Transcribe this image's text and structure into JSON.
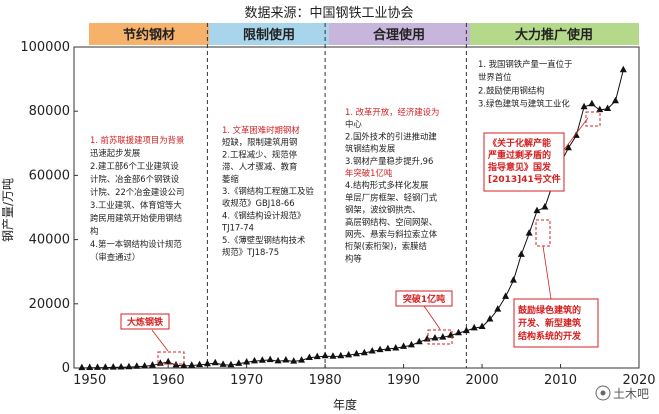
{
  "source_title": "数据来源：中国钢铁工业协会",
  "watermark": "土木吧",
  "colors": {
    "band_1": "#f6b26b",
    "band_2": "#a9d5ec",
    "band_3": "#c8b5db",
    "band_4": "#b4d98b",
    "accent_red": "#d42020",
    "marker": "#111111"
  },
  "periods": [
    {
      "label": "节约钢材",
      "notes": [
        {
          "text": "1. 前苏联援建项目为背景",
          "red": true
        },
        {
          "text": "迅速起步发展",
          "red": false
        },
        {
          "text": "2.建工部6个工业建筑设",
          "red": false
        },
        {
          "text": "计院、冶金部6个钢铁设",
          "red": false
        },
        {
          "text": "计院、22个冶金建设公司",
          "red": false
        },
        {
          "text": "3.工业建筑、体育馆等大",
          "red": false
        },
        {
          "text": "跨民用建筑开始使用钢结",
          "red": false
        },
        {
          "text": "构",
          "red": false
        },
        {
          "text": "4.第一本钢结构设计规范",
          "red": false
        },
        {
          "text": "（审查通过）",
          "red": false
        }
      ]
    },
    {
      "label": "限制使用",
      "notes": [
        {
          "text": "1. 文革困难时期钢材",
          "red": true
        },
        {
          "text": "短缺，限制建筑用钢",
          "red": false
        },
        {
          "text": "2.工程减少、规范停",
          "red": false
        },
        {
          "text": "滞、人才骤减、教育",
          "red": false
        },
        {
          "text": "萎缩",
          "red": false
        },
        {
          "text": "3.《钢结构工程施工及验",
          "red": false
        },
        {
          "text": "收规范》GBJ18-66",
          "red": false
        },
        {
          "text": "4.《钢结构设计规范》",
          "red": false
        },
        {
          "text": "TJ17-74",
          "red": false
        },
        {
          "text": "5.《薄壁型钢结构技术",
          "red": false
        },
        {
          "text": "规范》TJ18-75",
          "red": false
        }
      ]
    },
    {
      "label": "合理使用",
      "notes": [
        {
          "text": "1. 改革开放，经济建设为",
          "red": true
        },
        {
          "text": "中心",
          "red": false
        },
        {
          "text": "2.国外技术的引进推动建",
          "red": false
        },
        {
          "text": "筑钢结构发展",
          "red": false
        },
        {
          "text": "3.钢材产量稳步提升,96",
          "red": false
        },
        {
          "text": "年突破1亿吨",
          "red": true
        },
        {
          "text": "4.结构形式多样化发展",
          "red": false
        },
        {
          "text": "单层厂房框架、轻钢门式",
          "red": false
        },
        {
          "text": "钢架，波纹钢拱壳、",
          "red": false
        },
        {
          "text": "高层钢结构、空间网架、",
          "red": false
        },
        {
          "text": "网壳、悬索与斜拉索立体",
          "red": false
        },
        {
          "text": "桁架(索桁架)，索膜结",
          "red": false
        },
        {
          "text": "构等",
          "red": false
        }
      ]
    },
    {
      "label": "大力推广使用",
      "notes": [
        {
          "text": "1. 我国钢铁产量一直位于",
          "red": false
        },
        {
          "text": "世界首位",
          "red": false
        },
        {
          "text": "2.鼓励使用钢结构",
          "red": false
        },
        {
          "text": "3.绿色建筑与建筑工业化",
          "red": false
        }
      ]
    }
  ],
  "callouts": {
    "dalian_gang": "大炼钢铁",
    "tupo_yiyi": "突破1亿吨",
    "policy": [
      "《关于化解产能",
      "严重过剩矛盾的",
      "指导意见》国发",
      "[2013]41号文件"
    ],
    "green": [
      "鼓励绿色建筑的",
      "开发、新型建筑",
      "结构系统的开发"
    ]
  },
  "chart_data": {
    "type": "line",
    "title": "数据来源：中国钢铁工业协会",
    "xlabel": "年度",
    "ylabel": "钢产量/万吨",
    "xlim": [
      1948,
      2020
    ],
    "ylim": [
      0,
      100000
    ],
    "x_ticks": [
      1950,
      1960,
      1970,
      1980,
      1990,
      2000,
      2010,
      2020
    ],
    "y_ticks": [
      0,
      20000,
      40000,
      60000,
      80000,
      100000
    ],
    "y_tick_labels": [
      "0",
      "20000",
      "40000",
      "60000",
      "80000",
      "100000"
    ],
    "grid": false,
    "marker": "triangle",
    "series": [
      {
        "x": [
          1949,
          1950,
          1951,
          1952,
          1953,
          1954,
          1955,
          1956,
          1957,
          1958,
          1959,
          1960,
          1961,
          1962,
          1963,
          1964,
          1965,
          1966,
          1967,
          1968,
          1969,
          1970,
          1971,
          1972,
          1973,
          1974,
          1975,
          1976,
          1977,
          1978,
          1979,
          1980,
          1981,
          1982,
          1983,
          1984,
          1985,
          1986,
          1987,
          1988,
          1989,
          1990,
          1991,
          1992,
          1993,
          1994,
          1995,
          1996,
          1997,
          1998,
          1999,
          2000,
          2001,
          2002,
          2003,
          2004,
          2005,
          2006,
          2007,
          2008,
          2009,
          2010,
          2011,
          2012,
          2013,
          2014,
          2015,
          2016,
          2017,
          2018
        ],
        "values": [
          16,
          61,
          90,
          135,
          177,
          223,
          285,
          447,
          535,
          800,
          1387,
          1866,
          870,
          667,
          762,
          964,
          1223,
          1532,
          1029,
          904,
          1333,
          1779,
          2132,
          2338,
          2522,
          2112,
          2390,
          2046,
          2374,
          3178,
          3448,
          3712,
          3560,
          3716,
          4002,
          4347,
          4679,
          5221,
          5628,
          5943,
          6159,
          6635,
          7100,
          8094,
          8956,
          9261,
          9536,
          10124,
          10894,
          11559,
          12426,
          12850,
          15163,
          18237,
          22234,
          27280,
          35324,
          41915,
          48929,
          50049,
          57218,
          63723,
          68528,
          72388,
          81314,
          82231,
          80383,
          80761,
          83173,
          92826
        ]
      }
    ],
    "dividers_year": [
      1965,
      1980,
      1998
    ]
  }
}
